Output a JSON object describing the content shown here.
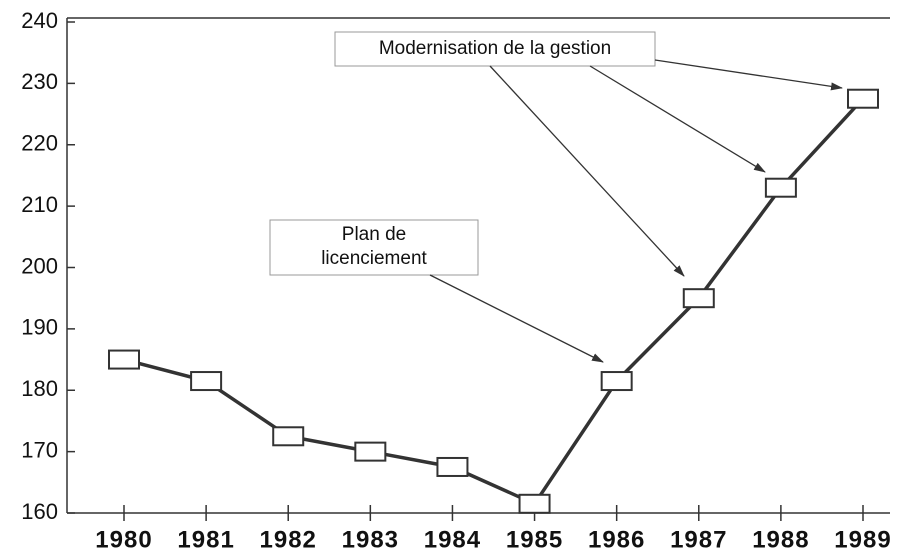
{
  "chart_data": {
    "type": "line",
    "categories": [
      "1980",
      "1981",
      "1982",
      "1983",
      "1984",
      "1985",
      "1986",
      "1987",
      "1988",
      "1989"
    ],
    "values": [
      185,
      181.5,
      172.5,
      170,
      167.5,
      161.5,
      181.5,
      195,
      213,
      227.5
    ],
    "color": "#333333",
    "ylim": [
      160,
      240
    ],
    "yticks": [
      160,
      170,
      180,
      190,
      200,
      210,
      220,
      230,
      240
    ],
    "annotations": [
      {
        "text": "Modernisation de la gestion"
      },
      {
        "lines": [
          "Plan de",
          "licenciement"
        ]
      }
    ]
  }
}
